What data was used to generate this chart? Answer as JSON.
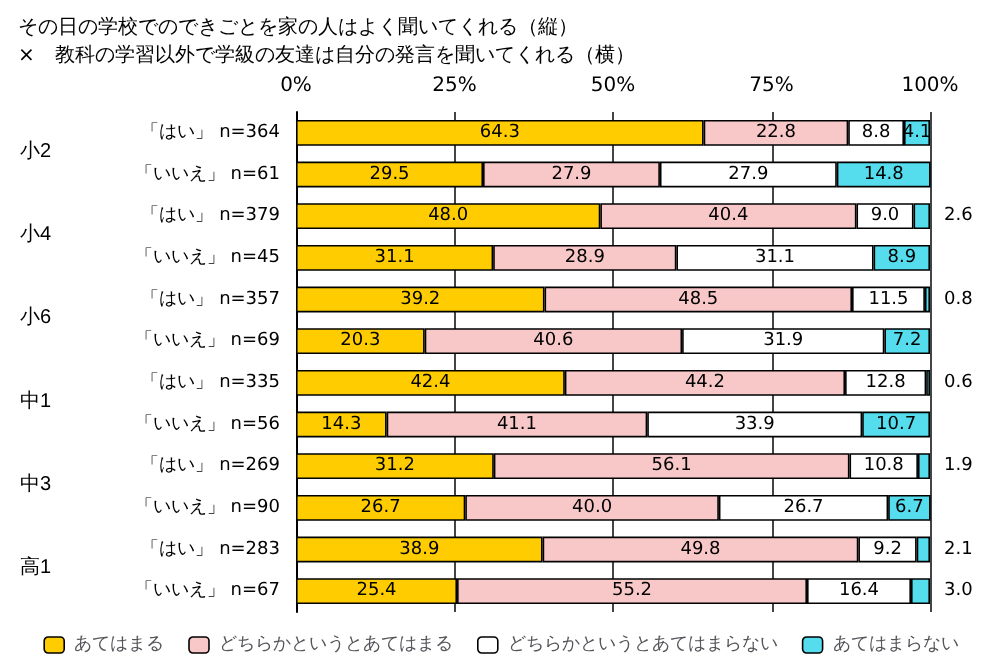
{
  "chart_data": {
    "type": "bar",
    "orientation": "horizontal",
    "stacked": true,
    "title": "その日の学校でのできごとを家の人はよく聞いてくれる（縦）\n×　教科の学習以外で学級の友達は自分の発言を聞いてくれる（横）",
    "categories": [
      "「はい」 n=364",
      "「いいえ」 n=61",
      "「はい」 n=379",
      "「いいえ」 n=45",
      "「はい」 n=357",
      "「いいえ」 n=69",
      "「はい」 n=335",
      "「いいえ」 n=56",
      "「はい」 n=269",
      "「いいえ」 n=90",
      "「はい」 n=283",
      "「いいえ」 n=67"
    ],
    "series": [
      {
        "name": "あてはまる",
        "color": "#ffcc00",
        "values": [
          64.3,
          29.5,
          48.0,
          31.1,
          39.2,
          20.3,
          42.4,
          14.3,
          31.2,
          26.7,
          38.9,
          25.4
        ],
        "value_labels": [
          "64.3",
          "29.5",
          "48.0",
          "31.1",
          "39.2",
          "20.3",
          "42.4",
          "14.3",
          "31.2",
          "26.7",
          "38.9",
          "25.4"
        ]
      },
      {
        "name": "どちらかというとあてはまる",
        "color": "#f8c8c8",
        "values": [
          22.8,
          27.9,
          40.4,
          28.9,
          48.5,
          40.6,
          44.2,
          41.1,
          56.1,
          40.0,
          49.8,
          55.2
        ],
        "value_labels": [
          "22.8",
          "27.9",
          "40.4",
          "28.9",
          "48.5",
          "40.6",
          "44.2",
          "41.1",
          "56.1",
          "40.0",
          "49.8",
          "55.2"
        ]
      },
      {
        "name": "どちらかというとあてはまらない",
        "color": "#ffffff",
        "values": [
          8.8,
          27.9,
          9.0,
          31.1,
          11.5,
          31.9,
          12.8,
          33.9,
          10.8,
          26.7,
          9.2,
          16.4
        ],
        "value_labels": [
          "8.8",
          "27.9",
          "9.0",
          "31.1",
          "11.5",
          "31.9",
          "12.8",
          "33.9",
          "10.8",
          "26.7",
          "9.2",
          "16.4"
        ]
      },
      {
        "name": "あてはまらない",
        "color": "#55ddee",
        "values": [
          4.1,
          14.8,
          2.6,
          8.9,
          0.8,
          7.2,
          0.6,
          10.7,
          1.9,
          6.7,
          2.1,
          3.0
        ],
        "value_labels": [
          "4.1",
          "14.8",
          "2.6",
          "8.9",
          "0.8",
          "7.2",
          "0.6",
          "10.7",
          "1.9",
          "6.7",
          "2.1",
          "3.0"
        ]
      }
    ],
    "annotations": [
      "小2",
      "小4",
      "小6",
      "中1",
      "中3",
      "高1"
    ],
    "xlim": [
      0,
      100
    ],
    "xticks": [
      {
        "value": 0,
        "label": "0%"
      },
      {
        "value": 25,
        "label": "25%"
      },
      {
        "value": 50,
        "label": "50%"
      },
      {
        "value": 75,
        "label": "75%"
      },
      {
        "value": 100,
        "label": "100%"
      }
    ],
    "grid": "x",
    "legend": "bottom"
  }
}
